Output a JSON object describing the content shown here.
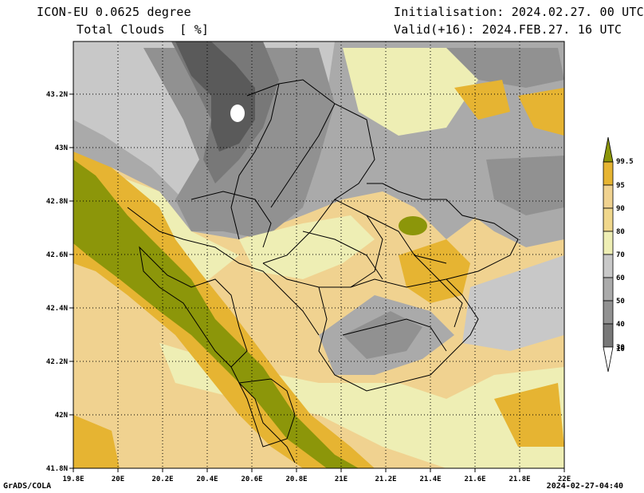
{
  "header": {
    "model": "ICON-EU 0.0625 degree",
    "variable": "Total Clouds  [ %]",
    "initialisation": "Initialisation: 2024.02.27. 00 UTC",
    "valid": "Valid(+16): 2024.FEB.27. 16 UTC"
  },
  "footer": {
    "credit": "GrADS/COLA",
    "timestamp": "2024-02-27-04:40"
  },
  "axes": {
    "lon_ticks": [
      "19.8E",
      "20E",
      "20.2E",
      "20.4E",
      "20.6E",
      "20.8E",
      "21E",
      "21.2E",
      "21.4E",
      "21.6E",
      "21.8E",
      "22E"
    ],
    "lat_ticks": [
      "41.8N",
      "42N",
      "42.2N",
      "42.4N",
      "42.6N",
      "42.8N",
      "43N",
      "43.2N"
    ],
    "lon_range": [
      19.8,
      22.0
    ],
    "lat_range": [
      41.8,
      43.4
    ]
  },
  "colorbar": {
    "labels": [
      "10",
      "30",
      "40",
      "50",
      "60",
      "70",
      "80",
      "90",
      "95",
      "99.5"
    ],
    "colors": [
      "#ffffff",
      "#5a5a5a",
      "#787878",
      "#919191",
      "#aaaaaa",
      "#c8c8c8",
      "#f0eeb4",
      "#f0d78c",
      "#e6b432",
      "#8c960a"
    ]
  },
  "palette": {
    "c10": "#5a5a5a",
    "c30": "#787878",
    "c40": "#919191",
    "c50": "#aaaaaa",
    "c60": "#c8c8c8",
    "c70": "#eeeeb4",
    "c80": "#f0d290",
    "c90": "#e6b432",
    "c95": "#8c960a",
    "border": "#000000"
  }
}
